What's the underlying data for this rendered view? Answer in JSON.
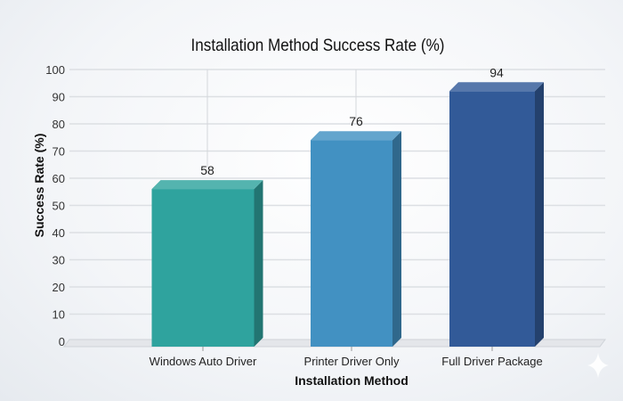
{
  "chart_data": {
    "type": "bar",
    "title": "Installation Method Success Rate (%)",
    "xlabel": "Installation Method",
    "ylabel": "Success Rate (%)",
    "categories": [
      "Windows Auto Driver",
      "Printer Driver Only",
      "Full Driver Package"
    ],
    "values": [
      58,
      76,
      94
    ],
    "data_labels": [
      "58",
      "76",
      "94"
    ],
    "ylim": [
      0,
      100
    ],
    "yticks": [
      "0",
      "10",
      "20",
      "30",
      "40",
      "50",
      "60",
      "70",
      "80",
      "90",
      "100"
    ],
    "grid": true,
    "style": "3d-bar",
    "colors": [
      "#2fa39e",
      "#4291c2",
      "#325a98"
    ]
  }
}
